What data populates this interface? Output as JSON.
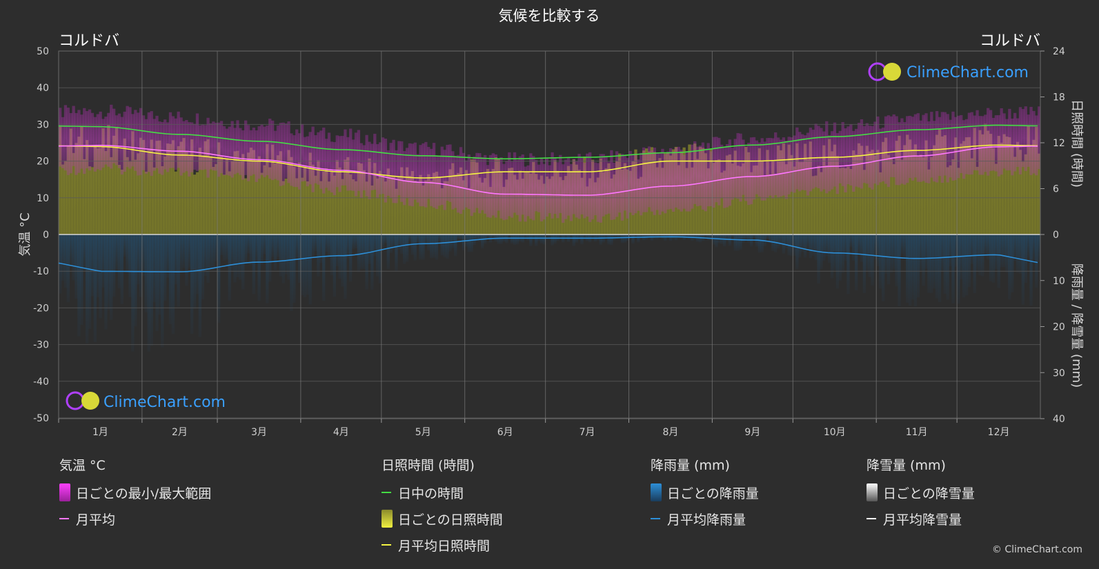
{
  "header": {
    "title": "気候を比較する",
    "city_left": "コルドバ",
    "city_right": "コルドバ"
  },
  "axes": {
    "left_label": "気温 °C",
    "right_top_label": "日照時間 (時間)",
    "right_bottom_label": "降雨量 / 降雪量 (mm)"
  },
  "logo_text": "ClimeChart.com",
  "copyright": "© ClimeChart.com",
  "colors": {
    "background": "#2d2d2d",
    "temp_range": "#e040e0",
    "temp_avg": "#ff77ff",
    "daylight": "#44dd44",
    "sunshine_fill": "#a0a030",
    "sunshine_avg": "#f5f542",
    "rain": "#2d8fd8",
    "snow": "#ffffff"
  },
  "legend": {
    "temp": {
      "header": "気温 °C",
      "range": "日ごとの最小/最大範囲",
      "avg": "月平均"
    },
    "sun": {
      "header": "日照時間 (時間)",
      "daylight": "日中の時間",
      "daily": "日ごとの日照時間",
      "avg": "月平均日照時間"
    },
    "rain": {
      "header": "降雨量 (mm)",
      "daily": "日ごとの降雨量",
      "avg": "月平均降雨量"
    },
    "snow": {
      "header": "降雪量 (mm)",
      "daily": "日ごとの降雪量",
      "avg": "月平均降雪量"
    }
  },
  "chart_data": {
    "type": "line",
    "categories": [
      "1月",
      "2月",
      "3月",
      "4月",
      "5月",
      "6月",
      "7月",
      "8月",
      "9月",
      "10月",
      "11月",
      "12月"
    ],
    "y_left": {
      "label": "気温 °C",
      "ticks": [
        50,
        40,
        30,
        20,
        10,
        0,
        -10,
        -20,
        -30,
        -40,
        -50
      ],
      "range": [
        -50,
        50
      ]
    },
    "y_right_top": {
      "label": "日照時間 (時間)",
      "ticks": [
        24,
        18,
        12,
        6,
        0
      ],
      "range": [
        0,
        24
      ]
    },
    "y_right_bottom": {
      "label": "降雨量 / 降雪量 (mm)",
      "ticks": [
        0,
        10,
        20,
        30,
        40
      ],
      "range": [
        0,
        40
      ]
    },
    "series": [
      {
        "name": "日中の時間",
        "unit": "hours",
        "values": [
          14.1,
          13.1,
          12.2,
          11.1,
          10.3,
          9.9,
          10.1,
          10.7,
          11.7,
          12.8,
          13.7,
          14.3
        ]
      },
      {
        "name": "月平均日照時間",
        "unit": "hours",
        "values": [
          11.5,
          10.4,
          9.6,
          8.2,
          7.4,
          8.2,
          8.2,
          9.6,
          9.6,
          10.1,
          11.0,
          11.7
        ]
      },
      {
        "name": "月平均",
        "unit": "°C",
        "values": [
          24.3,
          22.7,
          20.4,
          17.5,
          14.2,
          11.0,
          10.7,
          13.2,
          15.8,
          18.6,
          21.4,
          23.9
        ]
      },
      {
        "name": "月平均降雨量",
        "unit": "mm",
        "values": [
          8.0,
          8.1,
          6.0,
          4.6,
          2.0,
          0.8,
          0.8,
          0.5,
          1.2,
          4.0,
          5.2,
          4.4
        ]
      },
      {
        "name": "月平均降雪量",
        "unit": "mm",
        "values": [
          0,
          0,
          0,
          0,
          0,
          0,
          0,
          0,
          0,
          0,
          0,
          0
        ]
      },
      {
        "name": "日ごとの最小/最大範囲",
        "unit": "°C",
        "min": [
          19.5,
          18.5,
          16.5,
          13.5,
          10.0,
          6.5,
          6.0,
          8.0,
          11.0,
          14.0,
          16.5,
          18.5
        ],
        "max": [
          31.5,
          30.0,
          28.0,
          25.0,
          21.5,
          18.5,
          18.5,
          21.0,
          24.0,
          27.0,
          29.5,
          31.0
        ]
      }
    ],
    "legend_position": "bottom",
    "grid": true
  }
}
